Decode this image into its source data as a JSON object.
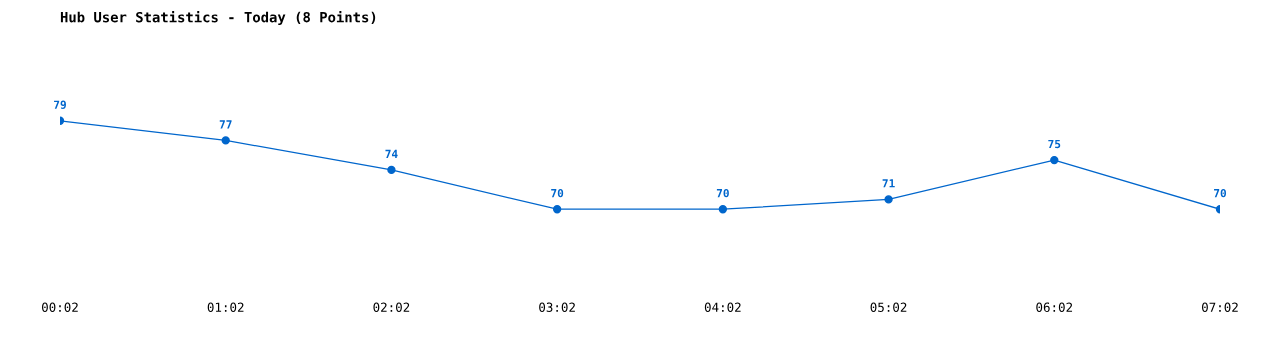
{
  "chart_data": {
    "type": "line",
    "title": "Hub User Statistics - Today (8 Points)",
    "categories": [
      "00:02",
      "01:02",
      "02:02",
      "03:02",
      "04:02",
      "05:02",
      "06:02",
      "07:02"
    ],
    "series": [
      {
        "color": "#0066cc",
        "values": [
          79,
          77,
          74,
          70,
          70,
          71,
          75,
          70
        ]
      }
    ],
    "data_labels": true,
    "marker": "circle",
    "line_style": "solid",
    "grid": false,
    "legend": false,
    "tick_labels": "x"
  }
}
